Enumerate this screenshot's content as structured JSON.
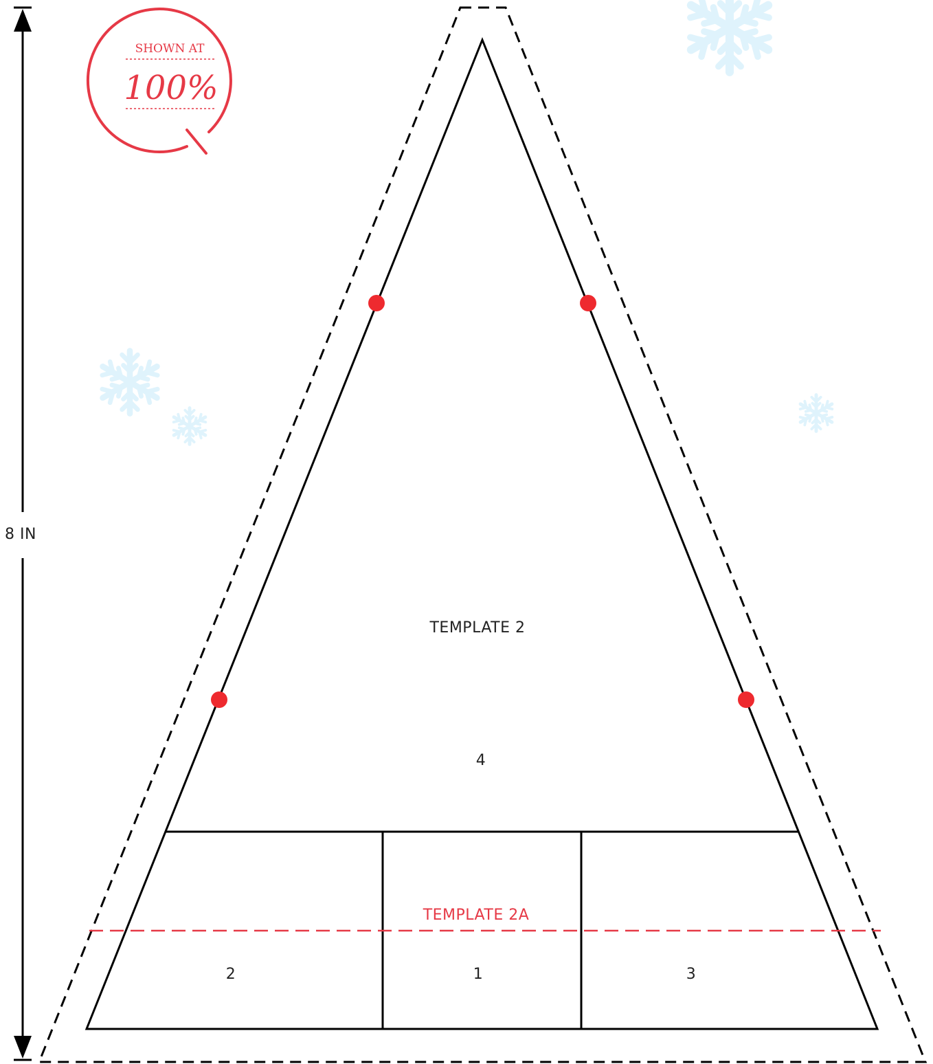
{
  "colors": {
    "line": "#000000",
    "accent_red": "#e63946",
    "dot_red": "#ee2a2f",
    "snowflake": "#dff3fc"
  },
  "measurement": {
    "label": "8 IN"
  },
  "badge": {
    "top_text": "SHOWN AT",
    "main_text": "100%"
  },
  "template_main": {
    "label": "TEMPLATE 2",
    "section_number": "4"
  },
  "template_sub": {
    "label": "TEMPLATE 2A"
  },
  "sections": [
    {
      "number": "2"
    },
    {
      "number": "1"
    },
    {
      "number": "3"
    }
  ],
  "icons": {
    "snowflake": "snowflake-icon",
    "marker": "placement-dot"
  }
}
